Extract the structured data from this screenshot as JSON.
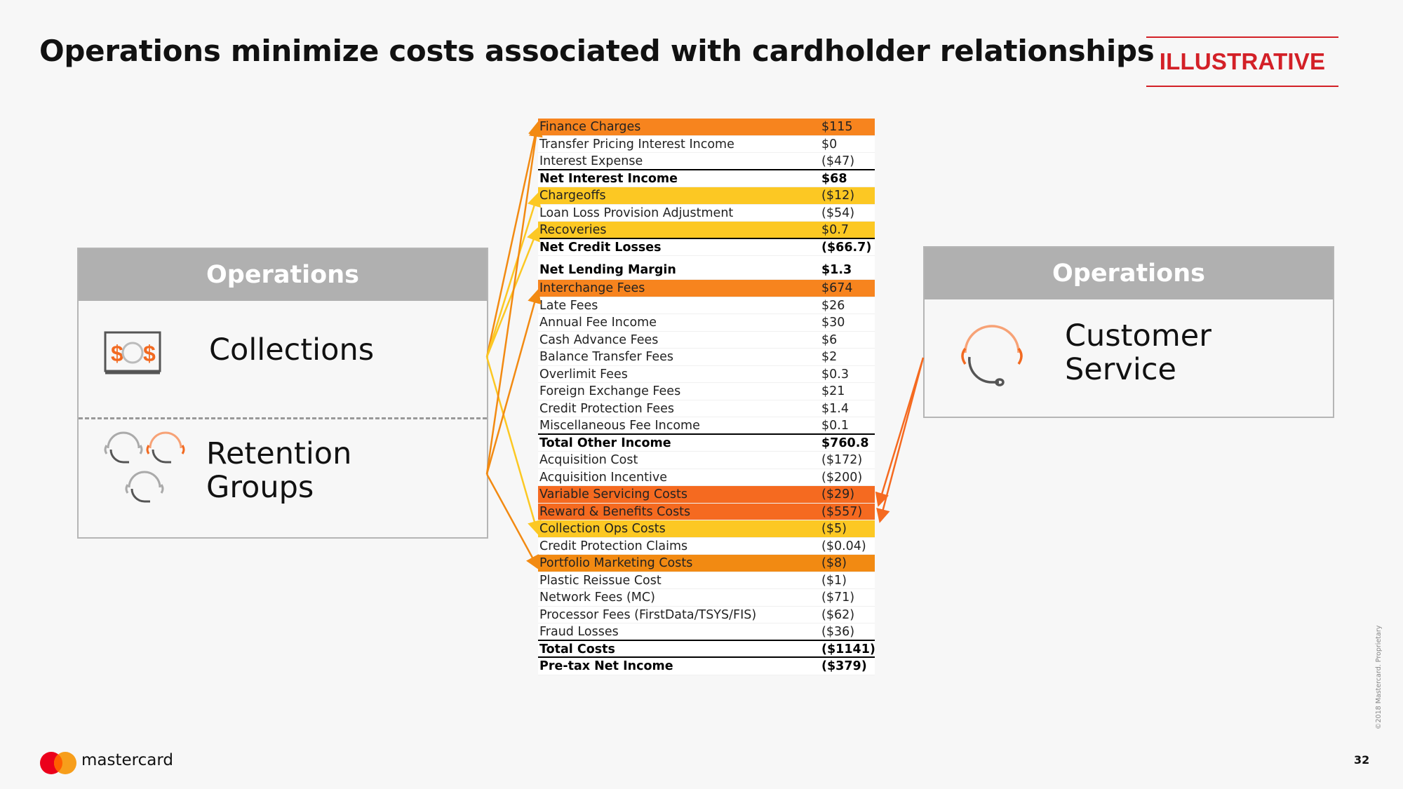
{
  "header": {
    "title": "Operations minimize costs associated with cardholder relationships",
    "badge": "ILLUSTRATIVE"
  },
  "left_panel": {
    "heading": "Operations",
    "items": [
      {
        "label": "Collections",
        "icon": "money-icon"
      },
      {
        "label_line1": "Retention",
        "label_line2": "Groups",
        "icon": "headset-group-icon"
      }
    ]
  },
  "right_panel": {
    "heading": "Operations",
    "label_line1": "Customer",
    "label_line2": "Service",
    "icon": "headset-icon"
  },
  "pl_table": {
    "rows": [
      {
        "label": "Finance Charges",
        "value": "$115",
        "style": "orange"
      },
      {
        "label": "Transfer Pricing Interest Income",
        "value": "$0"
      },
      {
        "label": "Interest Expense",
        "value": "($47)",
        "style": "ul"
      },
      {
        "label": "Net Interest Income",
        "value": "$68",
        "style": "bold"
      },
      {
        "label": "Chargeoffs",
        "value": "($12)",
        "style": "yellow"
      },
      {
        "label": "Loan Loss Provision Adjustment",
        "value": "($54)"
      },
      {
        "label": "Recoveries",
        "value": "$0.7",
        "style": "yellow ul"
      },
      {
        "label": "Net Credit Losses",
        "value": "($66.7)",
        "style": "bold"
      },
      {
        "label": "Net Lending Margin",
        "value": "$1.3",
        "style": "bold gap"
      },
      {
        "label": "Interchange Fees",
        "value": "$674",
        "style": "orange"
      },
      {
        "label": "Late Fees",
        "value": "$26"
      },
      {
        "label": "Annual Fee Income",
        "value": "$30"
      },
      {
        "label": "Cash Advance Fees",
        "value": "$6"
      },
      {
        "label": "Balance Transfer Fees",
        "value": "$2"
      },
      {
        "label": "Overlimit Fees",
        "value": "$0.3"
      },
      {
        "label": "Foreign Exchange Fees",
        "value": "$21"
      },
      {
        "label": "Credit Protection Fees",
        "value": "$1.4"
      },
      {
        "label": "Miscellaneous Fee Income",
        "value": "$0.1",
        "style": "ul"
      },
      {
        "label": "Total Other Income",
        "value": "$760.8",
        "style": "bold"
      },
      {
        "label": "Acquisition Cost",
        "value": "($172)"
      },
      {
        "label": "Acquisition Incentive",
        "value": "($200)"
      },
      {
        "label": "Variable Servicing Costs",
        "value": "($29)",
        "style": "red"
      },
      {
        "label": "Reward & Benefits Costs",
        "value": "($557)",
        "style": "red"
      },
      {
        "label": "Collection Ops Costs",
        "value": "($5)",
        "style": "yellow"
      },
      {
        "label": "Credit Protection Claims",
        "value": "($0.04)"
      },
      {
        "label": "Portfolio Marketing Costs",
        "value": "($8)",
        "style": "amber"
      },
      {
        "label": "Plastic Reissue Cost",
        "value": "($1)"
      },
      {
        "label": "Network Fees (MC)",
        "value": "($71)"
      },
      {
        "label": "Processor Fees (FirstData/TSYS/FIS)",
        "value": "($62)"
      },
      {
        "label": "Fraud Losses",
        "value": "($36)",
        "style": "ul"
      },
      {
        "label": "Total Costs",
        "value": "($1141)",
        "style": "bold ul"
      },
      {
        "label": "Pre-tax Net Income",
        "value": "($379)",
        "style": "bold"
      }
    ]
  },
  "colors": {
    "orange": "#f7841e",
    "yellow": "#fcc823",
    "red": "#f56a20",
    "amber": "#f28a12",
    "mastercard_red": "#eb001b",
    "mastercard_yellow": "#f79e1b",
    "badge_red": "#d32027"
  },
  "footer": {
    "brand": "mastercard",
    "copyright": "©2018 Mastercard. Proprietary",
    "page_number": "32"
  }
}
